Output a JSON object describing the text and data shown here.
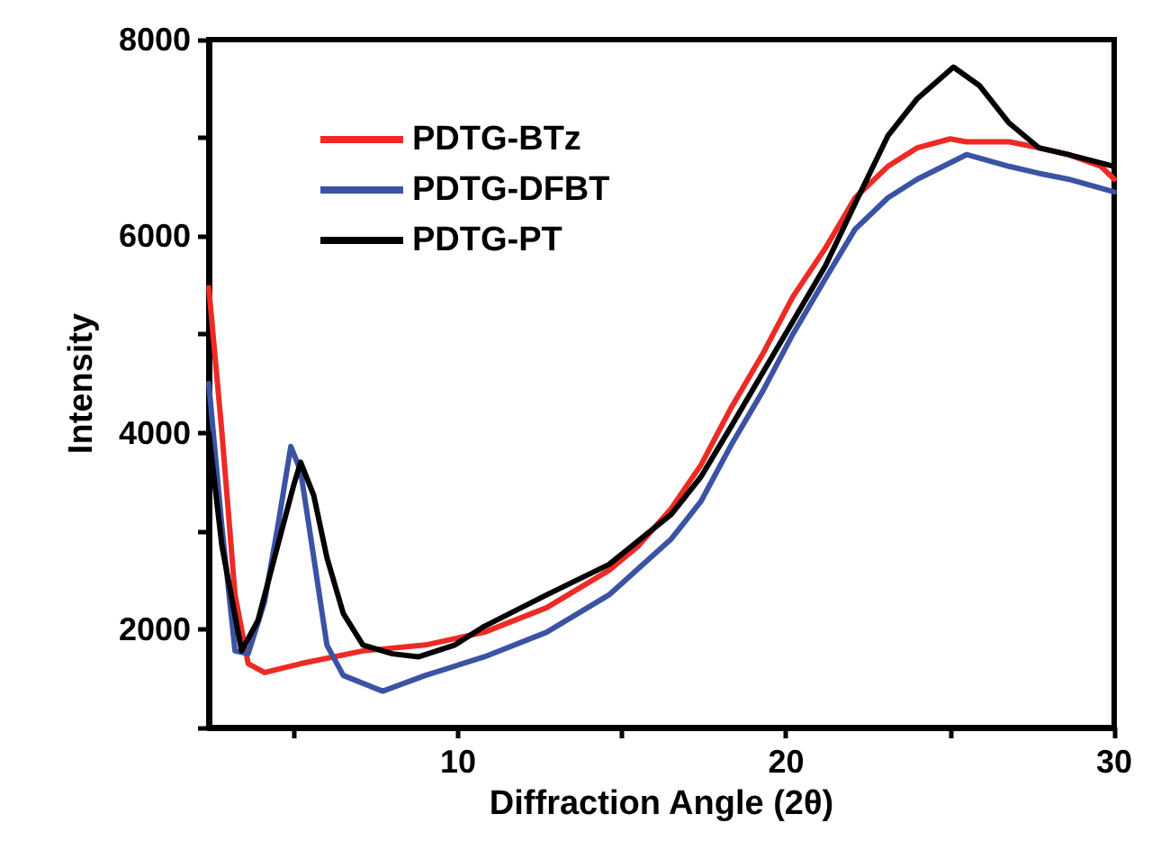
{
  "chart_data": {
    "type": "line",
    "xlabel": "Diffraction Angle (2θ)",
    "ylabel": "Intensity",
    "xlim": [
      2.4,
      30
    ],
    "ylim": [
      1000,
      8000
    ],
    "xticks": [
      {
        "value": 5,
        "label": null
      },
      10,
      {
        "value": 15,
        "label": null
      },
      20,
      {
        "value": 25,
        "label": null
      },
      30
    ],
    "yticks": [
      {
        "value": 1000,
        "label": null
      },
      2000,
      {
        "value": 3000,
        "label": null
      },
      4000,
      {
        "value": 5000,
        "label": null
      },
      6000,
      {
        "value": 7000,
        "label": null
      },
      8000
    ],
    "grid": false,
    "legend": "top left",
    "marker": "none",
    "line_style": "solid",
    "series": [
      {
        "name": "PDTG-BTz",
        "color": "#ee2a24",
        "x": [
          2.4,
          2.8,
          3.2,
          3.6,
          4.1,
          5.2,
          7.1,
          9.0,
          10.8,
          12.7,
          14.6,
          15.5,
          16.5,
          17.4,
          18.3,
          19.3,
          20.2,
          21.2,
          22.1,
          23.1,
          24.0,
          25.0,
          25.5,
          26.8,
          27.7,
          28.6,
          29.6,
          30
        ],
        "values": [
          5475,
          4000,
          2350,
          1650,
          1560,
          1650,
          1780,
          1840,
          1970,
          2220,
          2600,
          2850,
          3230,
          3670,
          4240,
          4810,
          5380,
          5880,
          6390,
          6710,
          6900,
          6990,
          6960,
          6960,
          6900,
          6830,
          6710,
          6580
        ]
      },
      {
        "name": "PDTG-DFBT",
        "color": "#3a53a4",
        "x": [
          2.4,
          2.8,
          3.2,
          3.6,
          4.1,
          4.5,
          4.9,
          5.2,
          5.6,
          6.0,
          6.5,
          7.7,
          9.0,
          10.8,
          12.7,
          14.6,
          16.5,
          17.4,
          18.3,
          19.3,
          20.2,
          21.2,
          22.1,
          23.1,
          24.0,
          25.5,
          26.8,
          27.7,
          28.6,
          30
        ],
        "values": [
          4500,
          3040,
          1780,
          1750,
          2280,
          3040,
          3860,
          3610,
          2730,
          1840,
          1530,
          1370,
          1530,
          1720,
          1970,
          2350,
          2920,
          3300,
          3860,
          4430,
          5000,
          5570,
          6070,
          6390,
          6580,
          6830,
          6710,
          6640,
          6580,
          6450
        ]
      },
      {
        "name": "PDTG-PT",
        "color": "#000000",
        "x": [
          2.4,
          2.8,
          3.4,
          3.9,
          4.5,
          5.0,
          5.2,
          5.6,
          6.0,
          6.5,
          7.1,
          8.0,
          8.8,
          9.9,
          10.8,
          12.7,
          14.6,
          16.5,
          17.4,
          18.3,
          19.3,
          20.2,
          21.2,
          22.1,
          23.1,
          24.0,
          25.1,
          25.9,
          26.8,
          27.7,
          28.6,
          30
        ],
        "values": [
          4000,
          2850,
          1780,
          2090,
          2850,
          3480,
          3700,
          3360,
          2730,
          2160,
          1840,
          1750,
          1720,
          1840,
          2030,
          2350,
          2660,
          3170,
          3550,
          4050,
          4620,
          5130,
          5700,
          6330,
          7020,
          7400,
          7720,
          7530,
          7150,
          6900,
          6830,
          6710
        ]
      }
    ]
  }
}
